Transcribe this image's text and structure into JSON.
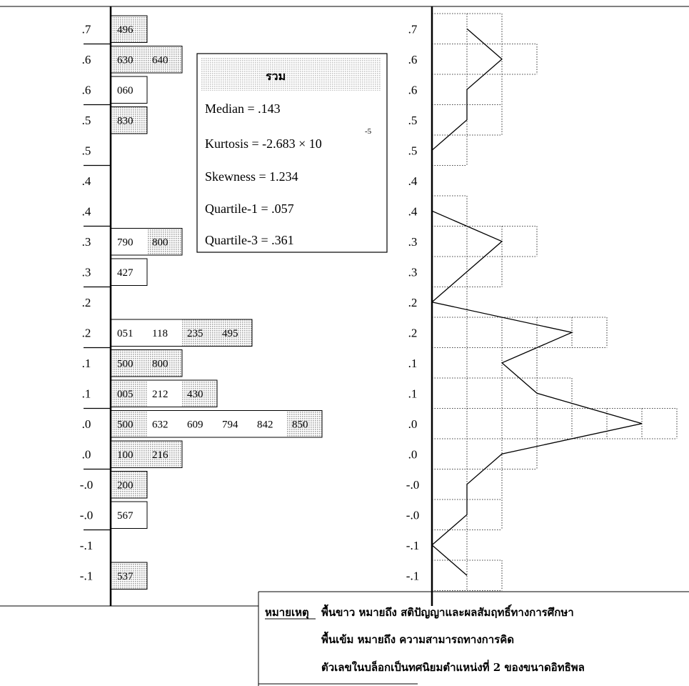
{
  "chart_data": {
    "type": "stem-and-leaf with frequency polygon",
    "stem_labels": [
      ".7",
      ".6",
      ".6",
      ".5",
      ".5",
      ".4",
      ".4",
      ".3",
      ".3",
      ".2",
      ".2",
      ".1",
      ".1",
      ".0",
      ".0",
      "-.0",
      "-.0",
      "-.1",
      "-.1"
    ],
    "polygon_labels": [
      ".7",
      ".6",
      ".6",
      ".5",
      ".5",
      ".4",
      ".4",
      ".3",
      ".3",
      ".2",
      ".2",
      ".1",
      ".1",
      ".0",
      ".0",
      "-.0",
      "-.0",
      "-.1",
      "-.1"
    ],
    "leaf_rows": [
      {
        "stem": 0,
        "leaves": [
          {
            "text": "496",
            "shade": "dark"
          }
        ]
      },
      {
        "stem": 1,
        "leaves": [
          {
            "text": "630",
            "shade": "dark"
          },
          {
            "text": "640",
            "shade": "dark"
          }
        ]
      },
      {
        "stem": 2,
        "leaves": [
          {
            "text": "060",
            "shade": "light"
          }
        ]
      },
      {
        "stem": 3,
        "leaves": [
          {
            "text": "830",
            "shade": "dark"
          }
        ]
      },
      {
        "stem": 7,
        "leaves": [
          {
            "text": "790",
            "shade": "light"
          },
          {
            "text": "800",
            "shade": "dark"
          }
        ]
      },
      {
        "stem": 8,
        "leaves": [
          {
            "text": "427",
            "shade": "light"
          }
        ]
      },
      {
        "stem": 10,
        "leaves": [
          {
            "text": "051",
            "shade": "light"
          },
          {
            "text": "118",
            "shade": "light"
          },
          {
            "text": "235",
            "shade": "dark"
          },
          {
            "text": "495",
            "shade": "dark"
          }
        ]
      },
      {
        "stem": 11,
        "leaves": [
          {
            "text": "500",
            "shade": "dark"
          },
          {
            "text": "800",
            "shade": "dark"
          }
        ]
      },
      {
        "stem": 12,
        "leaves": [
          {
            "text": "005",
            "shade": "dark"
          },
          {
            "text": "212",
            "shade": "light"
          },
          {
            "text": "430",
            "shade": "dark"
          }
        ]
      },
      {
        "stem": 13,
        "leaves": [
          {
            "text": "500",
            "shade": "dark"
          },
          {
            "text": "632",
            "shade": "light"
          },
          {
            "text": "609",
            "shade": "light"
          },
          {
            "text": "794",
            "shade": "light"
          },
          {
            "text": "842",
            "shade": "light"
          },
          {
            "text": "850",
            "shade": "dark"
          }
        ]
      },
      {
        "stem": 14,
        "leaves": [
          {
            "text": "100",
            "shade": "dark"
          },
          {
            "text": "216",
            "shade": "dark"
          }
        ]
      },
      {
        "stem": 15,
        "leaves": [
          {
            "text": "200",
            "shade": "dark"
          }
        ]
      },
      {
        "stem": 16,
        "leaves": [
          {
            "text": "567",
            "shade": "light"
          }
        ]
      },
      {
        "stem": 18,
        "leaves": [
          {
            "text": "537",
            "shade": "dark"
          }
        ]
      }
    ],
    "frequency_polygon": {
      "categories": [
        ".7",
        ".6",
        ".6",
        ".5",
        ".5",
        ".4",
        ".4",
        ".3",
        ".3",
        ".2",
        ".2",
        ".1",
        ".1",
        ".0",
        ".0",
        "-.0",
        "-.0",
        "-.1",
        "-.1"
      ],
      "values": [
        1,
        2,
        1,
        1,
        0,
        0,
        0,
        2,
        1,
        0,
        4,
        2,
        3,
        6,
        2,
        1,
        1,
        0,
        1
      ]
    },
    "stats_box": {
      "title": "รวม",
      "lines": [
        "Median    = .143",
        "Kurtosis   = -2.683 × 10",
        "Skewness = 1.234",
        "Quartile-1 = .057",
        "Quartile-3 = .361"
      ],
      "kurtosis_exponent": "-5"
    },
    "note": {
      "label": "หมายเหตุ",
      "line1": "พื้นขาว หมายถึง สติปัญญาและผลสัมฤทธิ์ทางการศึกษา",
      "line2": "พื้นเข้ม หมายถึง ความสามารถทางการคิด",
      "line3": "ตัวเลขในบล็อกเป็นทศนิยมตำแหน่งที่ 2 ของขนาดอิทธิพล"
    }
  },
  "colors": {
    "ink": "#000000",
    "paper": "#ffffff",
    "dark_shade": "#c8c8c8"
  }
}
